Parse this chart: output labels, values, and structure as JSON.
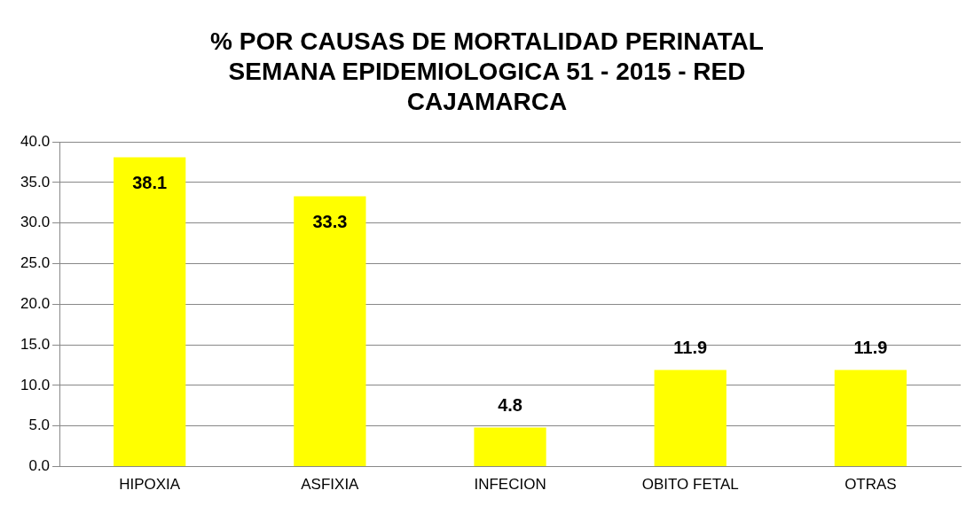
{
  "chart_data": {
    "type": "bar",
    "title": "% POR CAUSAS DE MORTALIDAD PERINATAL SEMANA EPIDEMIOLOGICA 51 - 2015 - RED CAJAMARCA",
    "categories": [
      "HIPOXIA",
      "ASFIXIA",
      "INFECION",
      "OBITO FETAL",
      "OTRAS"
    ],
    "values": [
      38.1,
      33.3,
      4.8,
      11.9,
      11.9
    ],
    "color": "#ffff00",
    "ylim": [
      0,
      40
    ],
    "yticks": [
      {
        "value": 0,
        "label": "0.0"
      },
      {
        "value": 5,
        "label": "5.0"
      },
      {
        "value": 10,
        "label": "10.0"
      },
      {
        "value": 15,
        "label": "15.0"
      },
      {
        "value": 20,
        "label": "20.0"
      },
      {
        "value": 25,
        "label": "25.0"
      },
      {
        "value": 30,
        "label": "30.0"
      },
      {
        "value": 35,
        "label": "35.0"
      },
      {
        "value": 40,
        "label": "40.0"
      }
    ],
    "grid": "y",
    "legend": false,
    "data_labels": true
  }
}
